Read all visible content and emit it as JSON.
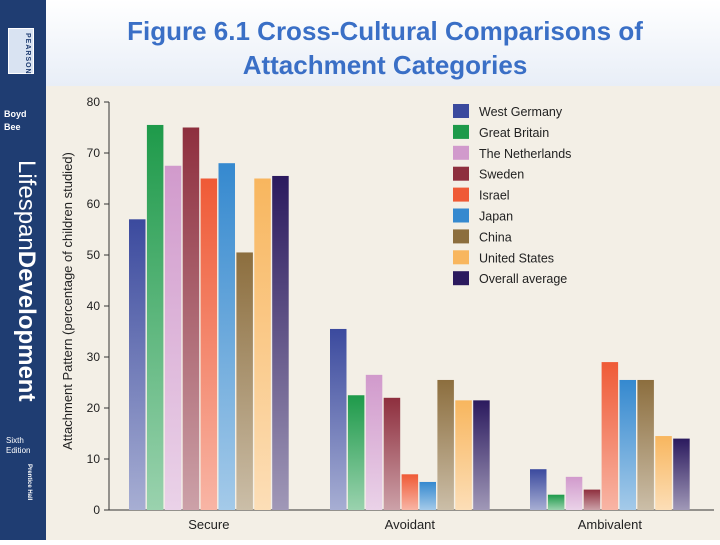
{
  "slide": {
    "title_line1": "Figure 6.1 Cross-Cultural Comparisons of",
    "title_line2": "Attachment Categories"
  },
  "sidebar": {
    "publisher": "PEARSON",
    "author1": "Boyd",
    "author2": "Bee",
    "book_title_part1": "Lifespan",
    "book_title_part2": "Development",
    "edition1": "Sixth",
    "edition2": "Edition",
    "imprint": "Prentice Hall"
  },
  "chart_data": {
    "type": "bar",
    "title": "",
    "xlabel": "",
    "ylabel": "Attachment Pattern (percentage of children studied)",
    "ylim": [
      0,
      80
    ],
    "yticks": [
      0,
      10,
      20,
      30,
      40,
      50,
      60,
      70,
      80
    ],
    "grid": false,
    "legend_position": "top-right",
    "categories": [
      "Secure",
      "Avoidant",
      "Ambivalent"
    ],
    "series": [
      {
        "name": "West Germany",
        "color": "#3b4a9e",
        "values": [
          57,
          35.5,
          8
        ]
      },
      {
        "name": "Great Britain",
        "color": "#1e9a4a",
        "values": [
          75.5,
          22.5,
          3
        ]
      },
      {
        "name": "The Netherlands",
        "color": "#d19acc",
        "values": [
          67.5,
          26.5,
          6.5
        ]
      },
      {
        "name": "Sweden",
        "color": "#8e2f3e",
        "values": [
          75,
          22,
          4
        ]
      },
      {
        "name": "Israel",
        "color": "#ef5a36",
        "values": [
          65,
          7,
          29
        ]
      },
      {
        "name": "Japan",
        "color": "#3589cf",
        "values": [
          68,
          5.5,
          25.5
        ]
      },
      {
        "name": "China",
        "color": "#8c6e3e",
        "values": [
          50.5,
          25.5,
          25.5
        ]
      },
      {
        "name": "United States",
        "color": "#f8b65e",
        "values": [
          65,
          21.5,
          14.5
        ]
      },
      {
        "name": "Overall average",
        "color": "#2b1a5e",
        "values": [
          65.5,
          21.5,
          14
        ]
      }
    ]
  }
}
